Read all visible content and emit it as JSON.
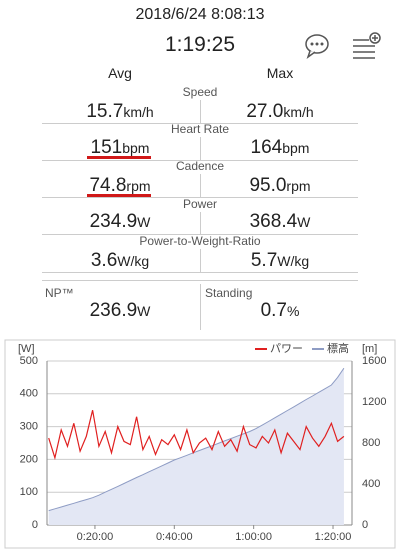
{
  "header": {
    "datetime": "2018/6/24 8:08:13",
    "duration": "1:19:25"
  },
  "columns": {
    "avg": "Avg",
    "max": "Max"
  },
  "metrics": [
    {
      "label": "Speed",
      "avg": "15.7",
      "avg_unit": "km/h",
      "max": "27.0",
      "max_unit": "km/h"
    },
    {
      "label": "Heart Rate",
      "avg": "151",
      "avg_unit": "bpm",
      "max": "164",
      "max_unit": "bpm"
    },
    {
      "label": "Cadence",
      "avg": "74.8",
      "avg_unit": "rpm",
      "max": "95.0",
      "max_unit": "rpm"
    },
    {
      "label": "Power",
      "avg": "234.9",
      "avg_unit": "W",
      "max": "368.4",
      "max_unit": "W"
    },
    {
      "label": "Power-to-Weight-Ratio",
      "avg": "3.6",
      "avg_unit": "W/kg",
      "max": "5.7",
      "max_unit": "W/kg"
    }
  ],
  "extras": [
    {
      "label": "NP™",
      "value": "236.9",
      "unit": "W"
    },
    {
      "label": "Standing",
      "value": "0.7",
      "unit": "%"
    }
  ],
  "chart_data": {
    "type": "line",
    "ylabel": "[W]",
    "y2label": "[m]",
    "grid": true,
    "x": [
      500,
      595,
      690,
      785,
      880,
      975,
      1070,
      1165,
      1260,
      1355,
      1450,
      1545,
      1640,
      1735,
      1830,
      1925,
      2020,
      2115,
      2210,
      2305,
      2400,
      2495,
      2590,
      2685,
      2780,
      2875,
      2970,
      3065,
      3160,
      3255,
      3350,
      3445,
      3540,
      3635,
      3730,
      3825,
      3920,
      4015,
      4110,
      4205,
      4300,
      4395,
      4490,
      4585,
      4680,
      4775,
      4870,
      4965
    ],
    "series": [
      {
        "name": "パワー",
        "color": "#e02020",
        "values": [
          265,
          205,
          290,
          240,
          310,
          225,
          270,
          350,
          240,
          285,
          220,
          300,
          255,
          245,
          330,
          230,
          270,
          215,
          260,
          245,
          275,
          230,
          290,
          220,
          250,
          265,
          230,
          285,
          240,
          260,
          225,
          300,
          245,
          235,
          270,
          250,
          290,
          220,
          280,
          255,
          230,
          300,
          265,
          240,
          270,
          310,
          255,
          270
        ]
      },
      {
        "name": "標高",
        "color": "#8e9cc4",
        "axis": "y2",
        "fill": "#e3e7f4",
        "values": [
          140,
          158,
          176,
          194,
          212,
          230,
          248,
          266,
          291,
          320,
          348,
          377,
          405,
          434,
          463,
          491,
          520,
          548,
          577,
          605,
          634,
          657,
          680,
          704,
          727,
          750,
          773,
          796,
          820,
          843,
          866,
          889,
          912,
          940,
          975,
          1010,
          1046,
          1081,
          1117,
          1152,
          1188,
          1224,
          1259,
          1295,
          1330,
          1366,
          1440,
          1530
        ]
      }
    ],
    "xlim": [
      475,
      5087
    ],
    "xticks": [
      {
        "value": 1200,
        "label": "0:20:00"
      },
      {
        "value": 2400,
        "label": "0:40:00"
      },
      {
        "value": 3600,
        "label": "1:00:00"
      },
      {
        "value": 4800,
        "label": "1:20:00"
      }
    ],
    "ylim": [
      0,
      500
    ],
    "yticks": [
      0,
      100,
      200,
      300,
      400,
      500
    ],
    "y2lim": [
      0,
      1600
    ],
    "y2ticks": [
      0,
      400,
      800,
      1200,
      1600
    ]
  }
}
